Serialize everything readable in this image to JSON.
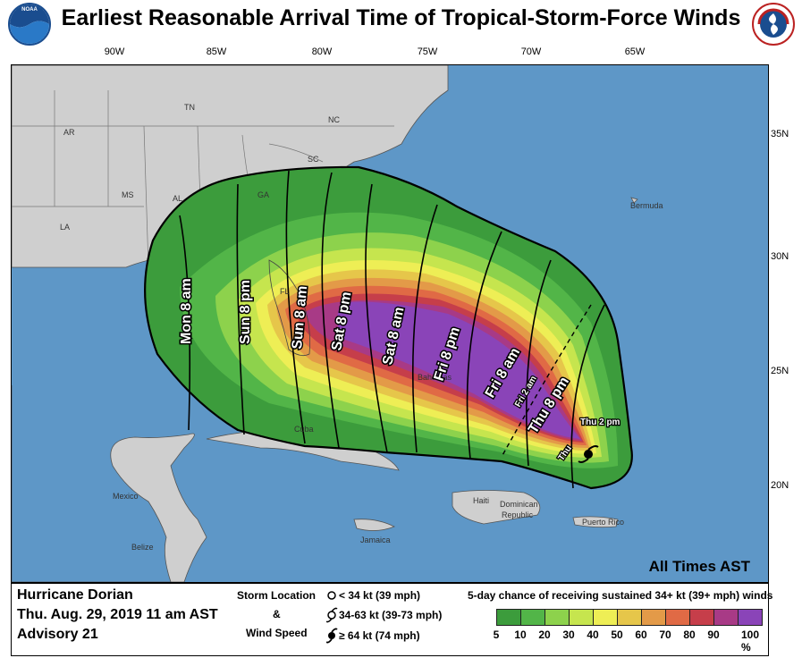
{
  "title": "Earliest Reasonable Arrival Time of Tropical-Storm-Force Winds",
  "logos": {
    "left": "NOAA",
    "right": "NATIONAL WEATHER SERVICE"
  },
  "longitudes": [
    "90W",
    "85W",
    "80W",
    "75W",
    "70W",
    "65W"
  ],
  "latitudes": [
    "35N",
    "30N",
    "25N",
    "20N"
  ],
  "places": {
    "ar": "AR",
    "tn": "TN",
    "nc": "NC",
    "sc": "SC",
    "ga": "GA",
    "ms": "MS",
    "al": "AL",
    "la": "LA",
    "fl": "FL",
    "bermuda": "Bermuda",
    "bahamas": "Bahamas",
    "cuba": "Cuba",
    "haiti": "Haiti",
    "dominican": "Dominican",
    "republic": "Republic",
    "puerto_rico": "Puerto Rico",
    "jamaica": "Jamaica",
    "mexico": "Mexico",
    "belize": "Belize"
  },
  "isochrones": [
    "Mon 8 am",
    "Sun 8 pm",
    "Sun 8 am",
    "Sat 8 pm",
    "Sat 8 am",
    "Fri 8 pm",
    "Fri 8 am",
    "Fri 2 am",
    "Thu 8 pm",
    "Thu 2 pm",
    "Thu"
  ],
  "all_times": "All Times AST",
  "storm": {
    "name": "Hurricane Dorian",
    "date": "Thu. Aug. 29, 2019  11 am AST",
    "advisory": "Advisory 21"
  },
  "storm_legend": {
    "title1": "Storm Location",
    "amp": "&",
    "title2": "Wind Speed",
    "lt34": "< 34 kt (39 mph)",
    "k34_63": "34-63 kt (39-73 mph)",
    "ge64": "≥ 64 kt (74 mph)"
  },
  "colorbar": {
    "title": "5-day chance of receiving sustained 34+ kt (39+ mph) winds",
    "ticks": [
      "5",
      "10",
      "20",
      "30",
      "40",
      "50",
      "60",
      "70",
      "80",
      "90",
      "100 %"
    ],
    "colors": [
      "#3c9c3c",
      "#52b548",
      "#8dd24c",
      "#c6e54e",
      "#eeee55",
      "#e6c64a",
      "#e39a48",
      "#e06a45",
      "#c63e4a",
      "#a83a86",
      "#8a44b8"
    ]
  }
}
